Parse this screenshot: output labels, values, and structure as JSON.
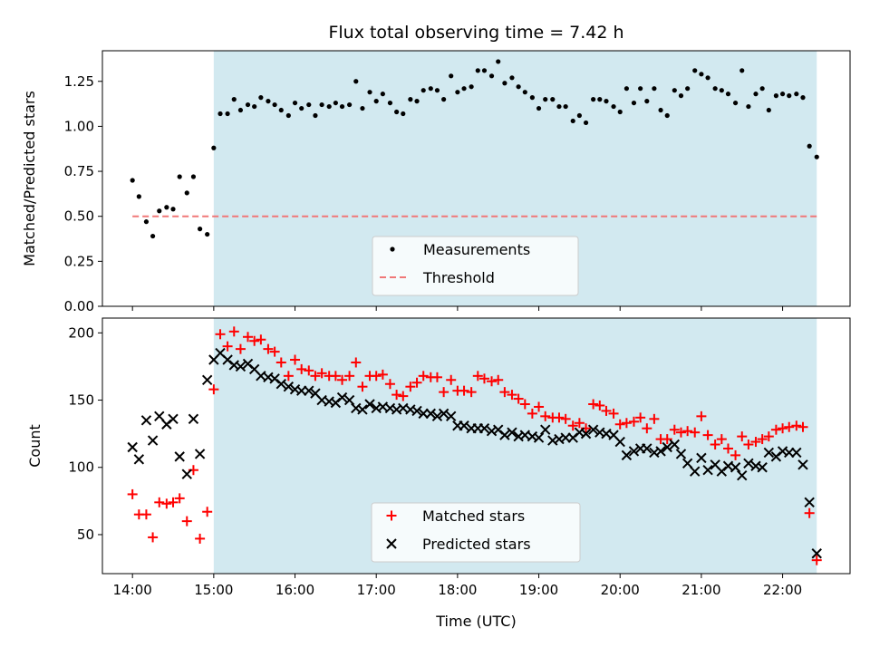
{
  "chart_data": [
    {
      "type": "scatter",
      "title": "Flux total observing time = 7.42 h",
      "xlabel": "",
      "ylabel": "Matched/Predicted stars",
      "x_unit": "hours (UTC)",
      "xlim": [
        13.63,
        22.83
      ],
      "ylim": [
        0.0,
        1.42
      ],
      "yticks": [
        0.0,
        0.25,
        0.5,
        0.75,
        1.0,
        1.25
      ],
      "ytick_labels": [
        "0.00",
        "0.25",
        "0.50",
        "0.75",
        "1.00",
        "1.25"
      ],
      "shaded_interval": {
        "start": 15.0,
        "end": 22.42,
        "color": "#d2e9f0"
      },
      "series": [
        {
          "name": "Measurements",
          "marker": "dot",
          "color": "#000000",
          "x": [
            14.0,
            14.08,
            14.17,
            14.25,
            14.33,
            14.42,
            14.5,
            14.58,
            14.67,
            14.75,
            14.83,
            14.92,
            15.0,
            15.08,
            15.17,
            15.25,
            15.33,
            15.42,
            15.5,
            15.58,
            15.67,
            15.75,
            15.83,
            15.92,
            16.0,
            16.08,
            16.17,
            16.25,
            16.33,
            16.42,
            16.5,
            16.58,
            16.67,
            16.75,
            16.83,
            16.92,
            17.0,
            17.08,
            17.17,
            17.25,
            17.33,
            17.42,
            17.5,
            17.58,
            17.67,
            17.75,
            17.83,
            17.92,
            18.0,
            18.08,
            18.17,
            18.25,
            18.33,
            18.42,
            18.5,
            18.58,
            18.67,
            18.75,
            18.83,
            18.92,
            19.0,
            19.08,
            19.17,
            19.25,
            19.33,
            19.42,
            19.5,
            19.58,
            19.67,
            19.75,
            19.83,
            19.92,
            20.0,
            20.08,
            20.17,
            20.25,
            20.33,
            20.42,
            20.5,
            20.58,
            20.67,
            20.75,
            20.83,
            20.92,
            21.0,
            21.08,
            21.17,
            21.25,
            21.33,
            21.42,
            21.5,
            21.58,
            21.67,
            21.75,
            21.83,
            21.92,
            22.0,
            22.08,
            22.17,
            22.25,
            22.33,
            22.42
          ],
          "y": [
            0.7,
            0.61,
            0.47,
            0.39,
            0.53,
            0.55,
            0.54,
            0.72,
            0.63,
            0.72,
            0.43,
            0.4,
            0.88,
            1.07,
            1.07,
            1.15,
            1.09,
            1.12,
            1.11,
            1.16,
            1.14,
            1.12,
            1.09,
            1.06,
            1.13,
            1.1,
            1.12,
            1.06,
            1.12,
            1.11,
            1.13,
            1.11,
            1.12,
            1.25,
            1.1,
            1.19,
            1.14,
            1.18,
            1.13,
            1.08,
            1.07,
            1.15,
            1.14,
            1.2,
            1.21,
            1.2,
            1.15,
            1.28,
            1.19,
            1.21,
            1.22,
            1.31,
            1.31,
            1.28,
            1.36,
            1.24,
            1.27,
            1.22,
            1.19,
            1.16,
            1.1,
            1.15,
            1.15,
            1.11,
            1.11,
            1.03,
            1.06,
            1.02,
            1.15,
            1.15,
            1.14,
            1.11,
            1.08,
            1.21,
            1.13,
            1.21,
            1.14,
            1.21,
            1.09,
            1.06,
            1.2,
            1.17,
            1.21,
            1.31,
            1.29,
            1.27,
            1.21,
            1.2,
            1.18,
            1.13,
            1.31,
            1.11,
            1.18,
            1.21,
            1.09,
            1.17,
            1.18,
            1.17,
            1.18,
            1.16,
            0.89,
            0.83
          ]
        },
        {
          "name": "Threshold",
          "marker": "dashed-line",
          "color": "#f07878",
          "x": [
            14.0,
            22.42
          ],
          "y": [
            0.5,
            0.5
          ]
        }
      ],
      "legend_position": "lower-center"
    },
    {
      "type": "scatter",
      "title": "",
      "xlabel": "Time (UTC)",
      "ylabel": "Count",
      "x_unit": "hours (UTC)",
      "xlim": [
        13.63,
        22.83
      ],
      "ylim": [
        21,
        211
      ],
      "xticks": [
        14,
        15,
        16,
        17,
        18,
        19,
        20,
        21,
        22
      ],
      "xtick_labels": [
        "14:00",
        "15:00",
        "16:00",
        "17:00",
        "18:00",
        "19:00",
        "20:00",
        "21:00",
        "22:00"
      ],
      "yticks": [
        50,
        100,
        150,
        200
      ],
      "ytick_labels": [
        "50",
        "100",
        "150",
        "200"
      ],
      "shaded_interval": {
        "start": 15.0,
        "end": 22.42,
        "color": "#d2e9f0"
      },
      "series": [
        {
          "name": "Matched stars",
          "marker": "plus",
          "color": "#ff0000",
          "x": [
            14.0,
            14.08,
            14.17,
            14.25,
            14.33,
            14.42,
            14.5,
            14.58,
            14.67,
            14.75,
            14.83,
            14.92,
            15.0,
            15.08,
            15.17,
            15.25,
            15.33,
            15.42,
            15.5,
            15.58,
            15.67,
            15.75,
            15.83,
            15.92,
            16.0,
            16.08,
            16.17,
            16.25,
            16.33,
            16.42,
            16.5,
            16.58,
            16.67,
            16.75,
            16.83,
            16.92,
            17.0,
            17.08,
            17.17,
            17.25,
            17.33,
            17.42,
            17.5,
            17.58,
            17.67,
            17.75,
            17.83,
            17.92,
            18.0,
            18.08,
            18.17,
            18.25,
            18.33,
            18.42,
            18.5,
            18.58,
            18.67,
            18.75,
            18.83,
            18.92,
            19.0,
            19.08,
            19.17,
            19.25,
            19.33,
            19.42,
            19.5,
            19.58,
            19.67,
            19.75,
            19.83,
            19.92,
            20.0,
            20.08,
            20.17,
            20.25,
            20.33,
            20.42,
            20.5,
            20.58,
            20.67,
            20.75,
            20.83,
            20.92,
            21.0,
            21.08,
            21.17,
            21.25,
            21.33,
            21.42,
            21.5,
            21.58,
            21.67,
            21.75,
            21.83,
            21.92,
            22.0,
            22.08,
            22.17,
            22.25,
            22.33,
            22.42
          ],
          "y": [
            80,
            65,
            65,
            48,
            74,
            73,
            74,
            77,
            60,
            98,
            47,
            67,
            158,
            199,
            190,
            201,
            188,
            197,
            194,
            195,
            188,
            186,
            178,
            168,
            180,
            173,
            172,
            168,
            170,
            168,
            168,
            165,
            168,
            178,
            160,
            168,
            168,
            169,
            162,
            154,
            153,
            160,
            163,
            168,
            167,
            167,
            156,
            165,
            157,
            157,
            156,
            168,
            166,
            164,
            165,
            156,
            154,
            151,
            147,
            140,
            145,
            138,
            137,
            137,
            136,
            131,
            133,
            129,
            147,
            146,
            142,
            140,
            132,
            133,
            134,
            137,
            129,
            136,
            121,
            121,
            128,
            126,
            127,
            126,
            138,
            124,
            117,
            121,
            114,
            109,
            123,
            117,
            119,
            121,
            123,
            128,
            129,
            130,
            131,
            130,
            66,
            31
          ]
        },
        {
          "name": "Predicted stars",
          "marker": "x",
          "color": "#000000",
          "x": [
            14.0,
            14.08,
            14.17,
            14.25,
            14.33,
            14.42,
            14.5,
            14.58,
            14.67,
            14.75,
            14.83,
            14.92,
            15.0,
            15.08,
            15.17,
            15.25,
            15.33,
            15.42,
            15.5,
            15.58,
            15.67,
            15.75,
            15.83,
            15.92,
            16.0,
            16.08,
            16.17,
            16.25,
            16.33,
            16.42,
            16.5,
            16.58,
            16.67,
            16.75,
            16.83,
            16.92,
            17.0,
            17.08,
            17.17,
            17.25,
            17.33,
            17.42,
            17.5,
            17.58,
            17.67,
            17.75,
            17.83,
            17.92,
            18.0,
            18.08,
            18.17,
            18.25,
            18.33,
            18.42,
            18.5,
            18.58,
            18.67,
            18.75,
            18.83,
            18.92,
            19.0,
            19.08,
            19.17,
            19.25,
            19.33,
            19.42,
            19.5,
            19.58,
            19.67,
            19.75,
            19.83,
            19.92,
            20.0,
            20.08,
            20.17,
            20.25,
            20.33,
            20.42,
            20.5,
            20.58,
            20.67,
            20.75,
            20.83,
            20.92,
            21.0,
            21.08,
            21.17,
            21.25,
            21.33,
            21.42,
            21.5,
            21.58,
            21.67,
            21.75,
            21.83,
            21.92,
            22.0,
            22.08,
            22.17,
            22.25,
            22.33,
            22.42
          ],
          "y": [
            115,
            106,
            135,
            120,
            138,
            132,
            136,
            108,
            95,
            136,
            110,
            165,
            180,
            185,
            180,
            176,
            175,
            177,
            173,
            168,
            167,
            166,
            162,
            160,
            158,
            157,
            157,
            155,
            150,
            149,
            148,
            152,
            150,
            144,
            143,
            147,
            144,
            145,
            144,
            143,
            144,
            143,
            142,
            140,
            140,
            138,
            140,
            138,
            131,
            131,
            129,
            129,
            129,
            127,
            128,
            124,
            126,
            123,
            124,
            123,
            122,
            128,
            120,
            121,
            122,
            122,
            126,
            125,
            128,
            126,
            125,
            124,
            119,
            109,
            112,
            114,
            114,
            111,
            112,
            115,
            117,
            110,
            103,
            97,
            107,
            98,
            102,
            97,
            101,
            100,
            94,
            103,
            101,
            100,
            111,
            108,
            112,
            111,
            111,
            102,
            74,
            36
          ]
        }
      ],
      "legend_position": "lower-center"
    }
  ]
}
